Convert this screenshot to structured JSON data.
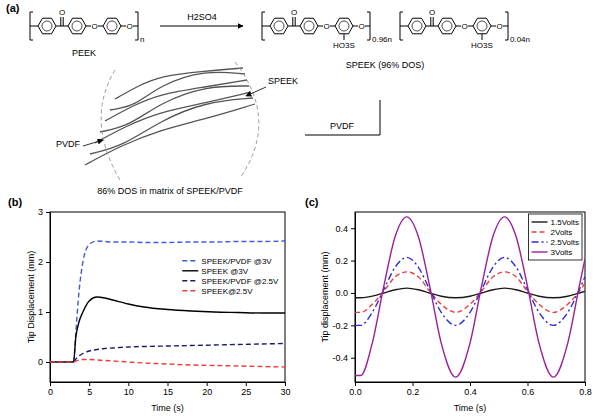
{
  "diagram": {
    "panel": "(a)",
    "oxygen": "O",
    "reactant": "PEEK",
    "reagent": "H2SO4",
    "product": "SPEEK (96% DOS)",
    "sulfonic_group": "HO3S",
    "peek_repeat": "n",
    "sulfonated_fraction": "0.96n",
    "unsulfonated_fraction": "0.04n",
    "blend_speek": "SPEEK",
    "blend_pvdf": "PVDF",
    "key_pvdf": "PVDF",
    "caption": "86% DOS in matrix of SPEEK/PVDF"
  },
  "chart_data": [
    {
      "type": "line",
      "panel": "(b)",
      "x_label": "Time (s)",
      "y_label": "Tip Displacement (mm)",
      "xlim": [
        0,
        30
      ],
      "xticks": [
        0,
        5,
        10,
        15,
        20,
        25,
        30
      ],
      "ylim": [
        -0.4,
        3
      ],
      "yticks": [
        0,
        1,
        2,
        3
      ],
      "grid": false,
      "legend": "right",
      "x": [
        0,
        1,
        2,
        3,
        3.3,
        3.7,
        4.2,
        5,
        6,
        7,
        8,
        10,
        12,
        15,
        18,
        21,
        24,
        27,
        30
      ],
      "series": [
        {
          "name": "SPEEK/PVDF @3V",
          "color": "#3d5bd9",
          "line_style": "dashed",
          "values": [
            0,
            0,
            0,
            0,
            0.6,
            1.4,
            2.0,
            2.35,
            2.42,
            2.41,
            2.4,
            2.4,
            2.39,
            2.39,
            2.4,
            2.4,
            2.41,
            2.41,
            2.42
          ]
        },
        {
          "name": "SPEEK @3V",
          "color": "#000000",
          "line_style": "solid",
          "values": [
            0,
            0,
            0,
            0,
            0.5,
            0.8,
            1.0,
            1.22,
            1.3,
            1.28,
            1.24,
            1.16,
            1.1,
            1.05,
            1.02,
            1.0,
            0.99,
            0.98,
            0.98
          ]
        },
        {
          "name": "SPEEK/PVDF @2.5V",
          "color": "#1a1a6e",
          "line_style": "dashed",
          "values": [
            0,
            0,
            0,
            0,
            0.06,
            0.12,
            0.17,
            0.22,
            0.25,
            0.27,
            0.28,
            0.3,
            0.31,
            0.32,
            0.33,
            0.34,
            0.35,
            0.36,
            0.37
          ]
        },
        {
          "name": "SPEEK@2.5V",
          "color": "#e8413c",
          "line_style": "dashed",
          "values": [
            0,
            0,
            0,
            0,
            0.02,
            0.04,
            0.05,
            0.05,
            0.04,
            0.03,
            0.02,
            0,
            -0.02,
            -0.04,
            -0.06,
            -0.07,
            -0.08,
            -0.09,
            -0.1
          ]
        }
      ]
    },
    {
      "type": "line",
      "panel": "(c)",
      "x_label": "Time (s)",
      "y_label": "Tip displacement (mm)",
      "xlim": [
        0,
        0.8
      ],
      "xticks": [
        {
          "value": 0,
          "label": "0.0"
        },
        0.2,
        0.4,
        0.6,
        0.8
      ],
      "ylim": [
        -0.55,
        0.5
      ],
      "yticks": [
        -0.4,
        -0.2,
        {
          "value": 0,
          "label": "0.0"
        },
        0.2,
        0.4
      ],
      "grid": false,
      "legend": "top-right",
      "x": [
        0,
        0.02,
        0.06,
        0.1,
        0.14,
        0.18,
        0.22,
        0.26,
        0.3,
        0.35,
        0.4,
        0.44,
        0.48,
        0.52,
        0.56,
        0.6,
        0.64,
        0.69,
        0.74,
        0.78,
        0.8
      ],
      "series": [
        {
          "name": "1.5Volts",
          "color": "#1a1a1a",
          "line_style": "solid",
          "values": [
            -0.03,
            -0.03,
            -0.02,
            0,
            0.02,
            0.03,
            0.02,
            0,
            -0.02,
            -0.03,
            -0.02,
            0,
            0.02,
            0.03,
            0.02,
            0,
            -0.02,
            -0.03,
            -0.02,
            0,
            0.01
          ]
        },
        {
          "name": "2Volts",
          "color": "#e8413c",
          "line_style": "dashed",
          "values": [
            -0.12,
            -0.12,
            -0.07,
            0.01,
            0.1,
            0.13,
            0.1,
            0.01,
            -0.07,
            -0.12,
            -0.07,
            0.01,
            0.1,
            0.13,
            0.1,
            0.01,
            -0.07,
            -0.12,
            -0.07,
            0.01,
            0.06
          ]
        },
        {
          "name": "2.5Volts",
          "color": "#2b2bd6",
          "line_style": "dashdot",
          "values": [
            -0.2,
            -0.2,
            -0.12,
            0.02,
            0.16,
            0.22,
            0.16,
            0.02,
            -0.12,
            -0.2,
            -0.12,
            0.02,
            0.16,
            0.22,
            0.16,
            0.02,
            -0.12,
            -0.2,
            -0.12,
            0.02,
            0.1
          ]
        },
        {
          "name": "3Volts",
          "color": "#9b1f9b",
          "line_style": "solid",
          "values": [
            -0.51,
            -0.51,
            -0.31,
            0.04,
            0.35,
            0.47,
            0.35,
            0.04,
            -0.31,
            -0.52,
            -0.31,
            0.04,
            0.35,
            0.47,
            0.35,
            0.04,
            -0.31,
            -0.52,
            -0.31,
            0.04,
            0.21
          ]
        }
      ]
    }
  ]
}
